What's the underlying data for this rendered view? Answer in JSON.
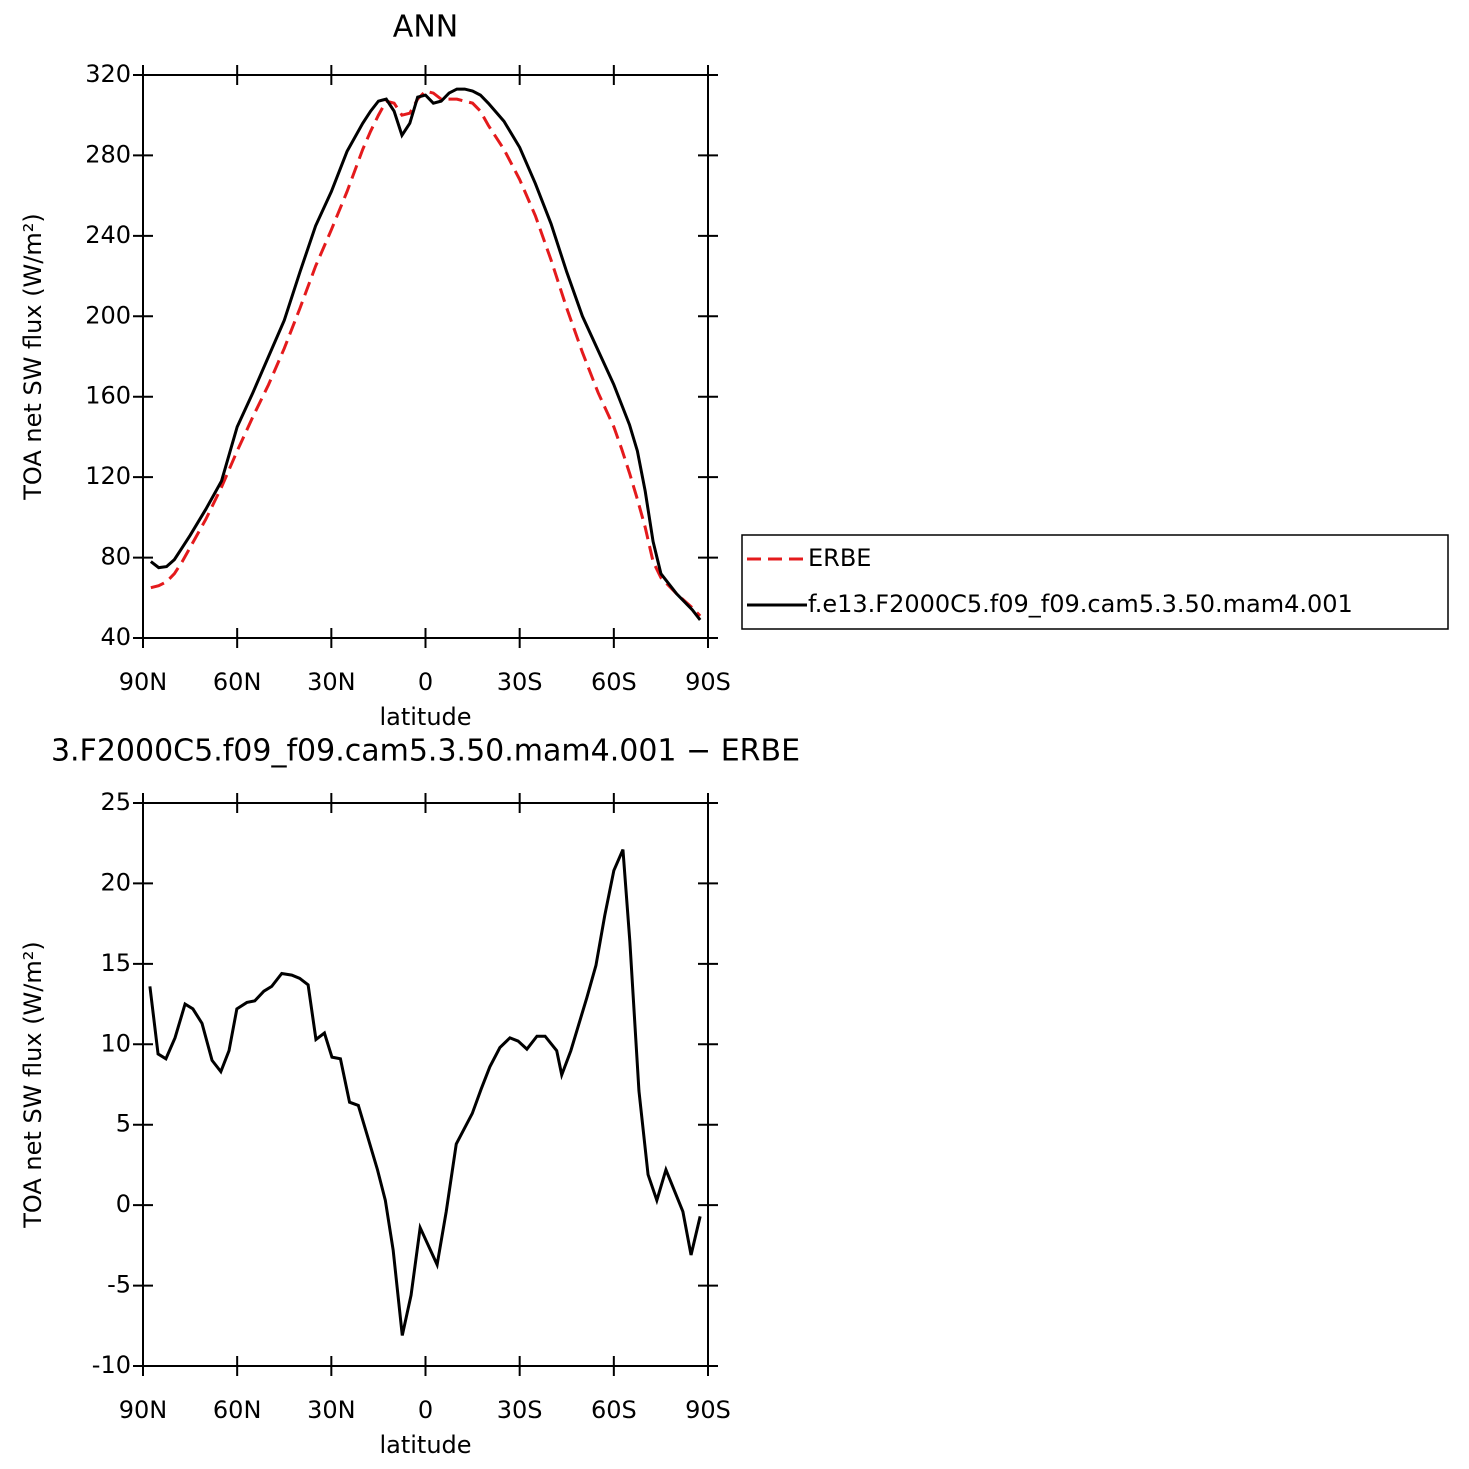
{
  "chart_data": [
    {
      "type": "line",
      "title": "ANN",
      "xlabel": "latitude",
      "ylabel": "TOA net SW flux (W/m²)",
      "x": [
        87.5,
        85,
        82.5,
        80,
        77.5,
        75,
        70,
        65,
        60,
        55,
        50,
        45,
        40,
        35,
        30,
        25,
        20,
        17.5,
        15,
        12.5,
        10,
        7.5,
        5,
        2.5,
        0,
        -2.5,
        -5,
        -7.5,
        -10,
        -12.5,
        -15,
        -17.5,
        -20,
        -25,
        -30,
        -35,
        -40,
        -45,
        -50,
        -55,
        -60,
        -62.5,
        -65,
        -67.5,
        -70,
        -72.5,
        -75,
        -80,
        -85,
        -87.5
      ],
      "series": [
        {
          "name": "ERBE",
          "color": "#e41a1c",
          "dash": true,
          "values": [
            65,
            66,
            68,
            72,
            78,
            85,
            99,
            115,
            133,
            150,
            166,
            184,
            204,
            225,
            243,
            262,
            283,
            292,
            300,
            307,
            306,
            300,
            301,
            308,
            312,
            311,
            308,
            308,
            308,
            307,
            306,
            302,
            295,
            283,
            268,
            250,
            228,
            204,
            182,
            162,
            145,
            134,
            122,
            109,
            95,
            78,
            70,
            62,
            55,
            51
          ]
        },
        {
          "name": "f.e13.F2000C5.f09_f09.cam5.3.50.mam4.001",
          "color": "#000000",
          "dash": false,
          "values": [
            78,
            75,
            75.5,
            79,
            85,
            91,
            104,
            118,
            145,
            162,
            180,
            198,
            222,
            245,
            262,
            282,
            296,
            302,
            307,
            308,
            302,
            290,
            296,
            309,
            310,
            306,
            307,
            311,
            313,
            313,
            312,
            310,
            306,
            297,
            284,
            266,
            246,
            222,
            200,
            183,
            166,
            156,
            146,
            133,
            113,
            88,
            72,
            62,
            54,
            49
          ]
        }
      ],
      "xlim": [
        90,
        -90
      ],
      "xticks": [
        {
          "value": 90,
          "label": "90N"
        },
        {
          "value": 60,
          "label": "60N"
        },
        {
          "value": 30,
          "label": "30N"
        },
        0,
        {
          "value": -30,
          "label": "30S"
        },
        {
          "value": -60,
          "label": "60S"
        },
        {
          "value": -90,
          "label": "90S"
        }
      ],
      "ylim": [
        40,
        320
      ],
      "yticks": [
        40,
        80,
        120,
        160,
        200,
        240,
        280,
        320
      ],
      "legend": "right"
    },
    {
      "type": "line",
      "title": "3.F2000C5.f09_f09.cam5.3.50.mam4.001 − ERBE",
      "xlabel": "latitude",
      "ylabel": "TOA net SW flux (W/m²)",
      "x": [
        87.8,
        85.2,
        82.7,
        79.8,
        76.6,
        74.1,
        71.2,
        68.0,
        65.2,
        62.6,
        60.1,
        56.9,
        54.4,
        51.5,
        49.0,
        45.8,
        42.6,
        40.1,
        37.4,
        34.9,
        32.2,
        29.8,
        27.1,
        24.2,
        21.4,
        18.5,
        15.3,
        12.8,
        10.3,
        7.4,
        4.6,
        1.7,
        -3.7,
        -6.6,
        -9.8,
        -14.9,
        -17.7,
        -20.5,
        -23.7,
        -26.9,
        -29.5,
        -32.3,
        -35.5,
        -38.1,
        -41.8,
        -43.4,
        -46.3,
        -51.4,
        -54.3,
        -57.1,
        -60.0,
        -62.9,
        -65.1,
        -68.0,
        -70.9,
        -73.7,
        -76.6,
        -82.0,
        -84.6,
        -87.5
      ],
      "series": [
        {
          "color": "#000000",
          "dash": false,
          "values": [
            13.6,
            9.4,
            9.1,
            10.4,
            12.5,
            12.2,
            11.3,
            9.0,
            8.3,
            9.6,
            12.2,
            12.6,
            12.7,
            13.3,
            13.6,
            14.4,
            14.3,
            14.1,
            13.7,
            10.3,
            10.7,
            9.2,
            9.1,
            6.4,
            6.2,
            4.3,
            2.2,
            0.3,
            -2.8,
            -8.1,
            -5.6,
            -1.4,
            -3.7,
            -0.4,
            3.8,
            5.7,
            7.2,
            8.6,
            9.8,
            10.4,
            10.2,
            9.7,
            10.5,
            10.5,
            9.6,
            8.1,
            9.6,
            12.9,
            14.9,
            18.0,
            20.8,
            22.1,
            16.4,
            7.1,
            1.9,
            0.3,
            2.2,
            -0.4,
            -3.1,
            -0.7
          ]
        }
      ],
      "xlim": [
        90,
        -90
      ],
      "xticks": [
        {
          "value": 90,
          "label": "90N"
        },
        {
          "value": 60,
          "label": "60N"
        },
        {
          "value": 30,
          "label": "30N"
        },
        0,
        {
          "value": -30,
          "label": "30S"
        },
        {
          "value": -60,
          "label": "60S"
        },
        {
          "value": -90,
          "label": "90S"
        }
      ],
      "ylim": [
        -10,
        25
      ],
      "yticks": [
        -10,
        -5,
        0,
        5,
        10,
        15,
        20,
        25
      ]
    }
  ]
}
